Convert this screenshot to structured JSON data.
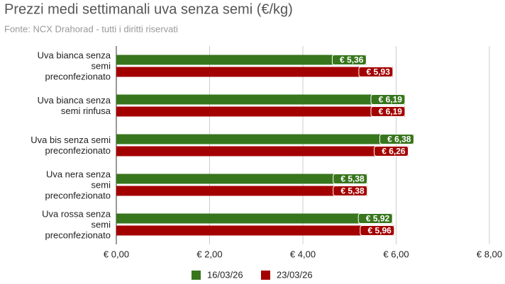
{
  "chart_data": {
    "type": "bar",
    "orientation": "horizontal",
    "title": "Prezzi medi settimanali uva senza semi (€/kg)",
    "subtitle": "Fonte: NCX Drahorad - tutti i diritti riservati",
    "categories": [
      "Uva bianca senza\nsemi\npreconfezionato",
      "Uva bianca senza\nsemi rinfusa",
      "Uva bis senza semi\npreconfezionato",
      "Uva nera senza\nsemi\npreconfezionato",
      "Uva rossa senza\nsemi\npreconfezionato"
    ],
    "series": [
      {
        "name": "16/03/26",
        "color": "#38761d",
        "values": [
          5.36,
          6.19,
          6.38,
          5.38,
          5.92
        ],
        "value_labels": [
          "€ 5,36",
          "€ 6,19",
          "€ 6,38",
          "€ 5,38",
          "€ 5,92"
        ]
      },
      {
        "name": "23/03/26",
        "color": "#a30000",
        "values": [
          5.93,
          6.19,
          6.26,
          5.38,
          5.96
        ],
        "value_labels": [
          "€ 5,93",
          "€ 6,19",
          "€ 6,26",
          "€ 5,38",
          "€ 5,96"
        ]
      }
    ],
    "xlim": [
      0,
      8
    ],
    "xticks": [
      {
        "value": 0,
        "label": "€ 0,00"
      },
      {
        "value": 2,
        "label": "€ 2,00"
      },
      {
        "value": 4,
        "label": "€ 4,00"
      },
      {
        "value": 6,
        "label": "€ 6,00"
      },
      {
        "value": 8,
        "label": "€ 8,00"
      }
    ],
    "grid": true,
    "legend": "bottom"
  }
}
